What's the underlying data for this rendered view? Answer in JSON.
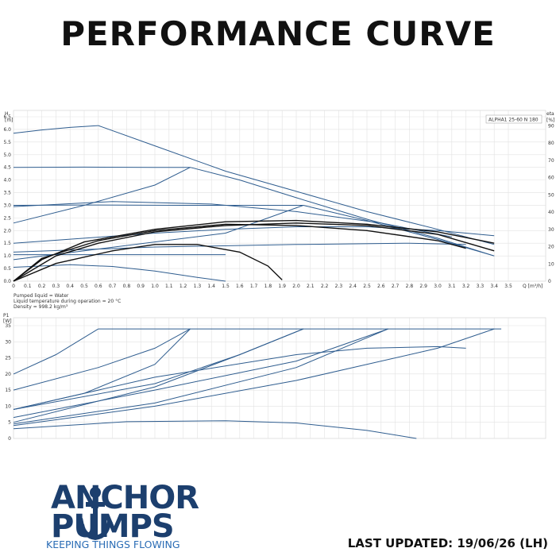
{
  "page": {
    "title": "PERFORMANCE CURVE",
    "last_updated": "LAST UPDATED: 19/06/26 (LH)"
  },
  "brand": {
    "line1": "ANCHOR",
    "line2": "PUMPS",
    "tagline": "KEEPING THINGS FLOWING",
    "color": "#1c3f6e",
    "accent": "#2a6cb5",
    "icon": "anchor-icon"
  },
  "chart_data": [
    {
      "type": "line",
      "title": "ALPHA1 25-60 N 180",
      "ylabel": "H",
      "yunit": "[m]",
      "y2label": "eta",
      "y2unit": "[%]",
      "xlabel": "Q",
      "xunit": "[m³/h]",
      "xlim": [
        0,
        3.5
      ],
      "ylim": [
        0,
        6.5
      ],
      "y2lim": [
        0,
        100
      ],
      "x_ticks": [
        "0",
        "0.1",
        "0.2",
        "0.3",
        "0.4",
        "0.5",
        "0.6",
        "0.7",
        "0.8",
        "0.9",
        "1.0",
        "1.1",
        "1.2",
        "1.3",
        "1.4",
        "1.5",
        "1.6",
        "1.7",
        "1.8",
        "1.9",
        "2.0",
        "2.1",
        "2.2",
        "2.3",
        "2.4",
        "2.5",
        "2.6",
        "2.7",
        "2.8",
        "2.9",
        "3.0",
        "3.1",
        "3.2",
        "3.3",
        "3.4",
        "3.5"
      ],
      "y_ticks": [
        "0.0",
        "0.5",
        "1.0",
        "1.5",
        "2.0",
        "2.5",
        "3.0",
        "3.5",
        "4.0",
        "4.5",
        "5.0",
        "5.5",
        "6.0",
        "6.5"
      ],
      "y2_ticks": [
        "0",
        "10",
        "20",
        "30",
        "40",
        "50",
        "60",
        "70",
        "80",
        "90"
      ],
      "grid": true,
      "notes": [
        "Pumped liquid = Water",
        "Liquid temperature during operation = 20 °C",
        "Density = 998.2 kg/m³"
      ],
      "series": [
        {
          "color": "#2f5d8f",
          "points": [
            [
              0,
              5.85
            ],
            [
              0.2,
              5.98
            ],
            [
              0.4,
              6.08
            ],
            [
              0.6,
              6.15
            ]
          ]
        },
        {
          "color": "#2f5d8f",
          "points": [
            [
              0.6,
              6.15
            ],
            [
              1.0,
              5.35
            ],
            [
              1.5,
              4.35
            ],
            [
              2.0,
              3.55
            ],
            [
              2.5,
              2.75
            ],
            [
              3.0,
              2.05
            ],
            [
              3.4,
              1.45
            ]
          ]
        },
        {
          "color": "#2f5d8f",
          "points": [
            [
              0,
              4.5
            ],
            [
              0.5,
              4.51
            ],
            [
              1.0,
              4.5
            ],
            [
              1.25,
              4.5
            ]
          ]
        },
        {
          "color": "#2f5d8f",
          "points": [
            [
              1.25,
              4.5
            ],
            [
              1.6,
              4.0
            ],
            [
              2.0,
              3.3
            ],
            [
              2.5,
              2.45
            ],
            [
              3.0,
              1.7
            ],
            [
              3.4,
              1.0
            ]
          ]
        },
        {
          "color": "#2f5d8f",
          "points": [
            [
              0,
              3.0
            ],
            [
              0.5,
              3.01
            ],
            [
              1.2,
              3.0
            ],
            [
              2.05,
              3.0
            ]
          ]
        },
        {
          "color": "#2f5d8f",
          "points": [
            [
              2.05,
              3.0
            ],
            [
              2.5,
              2.4
            ],
            [
              3.0,
              1.65
            ],
            [
              3.4,
              1.0
            ]
          ]
        },
        {
          "color": "#2f5d8f",
          "points": [
            [
              0,
              1.05
            ],
            [
              1.0,
              1.05
            ],
            [
              1.5,
              1.05
            ]
          ]
        },
        {
          "color": "#2f5d8f",
          "points": [
            [
              0,
              0.55
            ],
            [
              0.4,
              0.65
            ],
            [
              0.7,
              0.58
            ],
            [
              1.0,
              0.4
            ],
            [
              1.3,
              0.15
            ],
            [
              1.5,
              0.0
            ]
          ]
        },
        {
          "color": "#2f5d8f",
          "points": [
            [
              0,
              1.5
            ],
            [
              0.5,
              1.7
            ],
            [
              1.0,
              1.9
            ],
            [
              1.5,
              2.05
            ],
            [
              2.0,
              2.15
            ],
            [
              2.5,
              2.15
            ],
            [
              3.0,
              2.0
            ],
            [
              3.4,
              1.8
            ]
          ]
        },
        {
          "color": "#2f5d8f",
          "points": [
            [
              0,
              2.3
            ],
            [
              0.5,
              3.0
            ],
            [
              1.0,
              3.8
            ],
            [
              1.25,
              4.5
            ]
          ]
        },
        {
          "color": "#2f5d8f",
          "points": [
            [
              0,
              0.85
            ],
            [
              0.5,
              1.2
            ],
            [
              1.0,
              1.55
            ],
            [
              1.5,
              1.9
            ],
            [
              2.05,
              3.0
            ]
          ]
        },
        {
          "color": "#2f5d8f",
          "points": [
            [
              0,
              2.95
            ],
            [
              0.7,
              3.15
            ],
            [
              1.4,
              3.05
            ],
            [
              2.0,
              2.75
            ],
            [
              2.6,
              2.3
            ],
            [
              3.1,
              1.75
            ]
          ]
        },
        {
          "color": "#2f5d8f",
          "points": [
            [
              0,
              1.15
            ],
            [
              1.0,
              1.35
            ],
            [
              2.0,
              1.45
            ],
            [
              2.8,
              1.5
            ],
            [
              3.2,
              1.45
            ]
          ]
        },
        {
          "color": "#111111",
          "points": [
            [
              0,
              0.0
            ],
            [
              0.2,
              0.85
            ],
            [
              0.5,
              1.55
            ],
            [
              1.0,
              2.05
            ],
            [
              1.5,
              2.35
            ],
            [
              2.0,
              2.4
            ],
            [
              2.5,
              2.25
            ],
            [
              3.0,
              1.95
            ],
            [
              3.4,
              1.5
            ]
          ]
        },
        {
          "color": "#111111",
          "points": [
            [
              0,
              0.0
            ],
            [
              0.3,
              1.0
            ],
            [
              0.6,
              1.5
            ],
            [
              1.0,
              1.95
            ],
            [
              1.5,
              2.2
            ],
            [
              2.0,
              2.3
            ],
            [
              2.5,
              2.2
            ],
            [
              3.0,
              1.85
            ],
            [
              3.4,
              1.2
            ]
          ]
        },
        {
          "color": "#111111",
          "points": [
            [
              0,
              0.0
            ],
            [
              0.2,
              0.9
            ],
            [
              0.6,
              1.6
            ],
            [
              1.0,
              2.0
            ],
            [
              1.5,
              2.25
            ],
            [
              2.0,
              2.2
            ],
            [
              2.5,
              2.0
            ],
            [
              3.0,
              1.6
            ],
            [
              3.2,
              1.3
            ]
          ]
        },
        {
          "color": "#111111",
          "points": [
            [
              0,
              0.0
            ],
            [
              0.3,
              0.7
            ],
            [
              0.7,
              1.2
            ],
            [
              1.0,
              1.45
            ],
            [
              1.3,
              1.45
            ],
            [
              1.6,
              1.15
            ],
            [
              1.8,
              0.6
            ],
            [
              1.9,
              0.05
            ]
          ]
        }
      ]
    },
    {
      "type": "line",
      "ylabel": "P1",
      "yunit": "[W]",
      "xlim": [
        0,
        3.5
      ],
      "ylim": [
        0,
        35
      ],
      "y_ticks": [
        "0",
        "5",
        "10",
        "15",
        "20",
        "25",
        "30",
        "35"
      ],
      "grid": true,
      "series": [
        {
          "color": "#2f5d8f",
          "points": [
            [
              0.6,
              34
            ],
            [
              1.5,
              34
            ],
            [
              2.5,
              34
            ],
            [
              3.45,
              34
            ]
          ]
        },
        {
          "color": "#2f5d8f",
          "points": [
            [
              0,
              20
            ],
            [
              0.3,
              26
            ],
            [
              0.6,
              34
            ]
          ]
        },
        {
          "color": "#2f5d8f",
          "points": [
            [
              0,
              15
            ],
            [
              0.6,
              22
            ],
            [
              1.0,
              28
            ],
            [
              1.25,
              34
            ]
          ]
        },
        {
          "color": "#2f5d8f",
          "points": [
            [
              0,
              9
            ],
            [
              0.5,
              14
            ],
            [
              1.0,
              23
            ],
            [
              1.25,
              34
            ]
          ]
        },
        {
          "color": "#2f5d8f",
          "points": [
            [
              0,
              5
            ],
            [
              1.0,
              16
            ],
            [
              1.6,
              26
            ],
            [
              2.05,
              34
            ]
          ]
        },
        {
          "color": "#2f5d8f",
          "points": [
            [
              0,
              9
            ],
            [
              1.0,
              17
            ],
            [
              1.6,
              26
            ],
            [
              2.05,
              34
            ]
          ]
        },
        {
          "color": "#2f5d8f",
          "points": [
            [
              0,
              4.5
            ],
            [
              1.0,
              11
            ],
            [
              2.0,
              22
            ],
            [
              2.65,
              34
            ]
          ]
        },
        {
          "color": "#2f5d8f",
          "points": [
            [
              0,
              6.5
            ],
            [
              1.0,
              15
            ],
            [
              2.0,
              24
            ],
            [
              2.65,
              34
            ]
          ]
        },
        {
          "color": "#2f5d8f",
          "points": [
            [
              0,
              4
            ],
            [
              1.0,
              10
            ],
            [
              2.0,
              18
            ],
            [
              3.0,
              28
            ],
            [
              3.4,
              34
            ]
          ]
        },
        {
          "color": "#2f5d8f",
          "points": [
            [
              0,
              9
            ],
            [
              1.0,
              19
            ],
            [
              2.0,
              26
            ],
            [
              2.5,
              28
            ],
            [
              3.0,
              28.5
            ],
            [
              3.2,
              28
            ]
          ]
        },
        {
          "color": "#2f5d8f",
          "points": [
            [
              0,
              3
            ],
            [
              0.8,
              5.2
            ],
            [
              1.5,
              5.5
            ],
            [
              2.0,
              4.8
            ],
            [
              2.5,
              2.5
            ],
            [
              2.85,
              0
            ]
          ]
        }
      ]
    }
  ]
}
